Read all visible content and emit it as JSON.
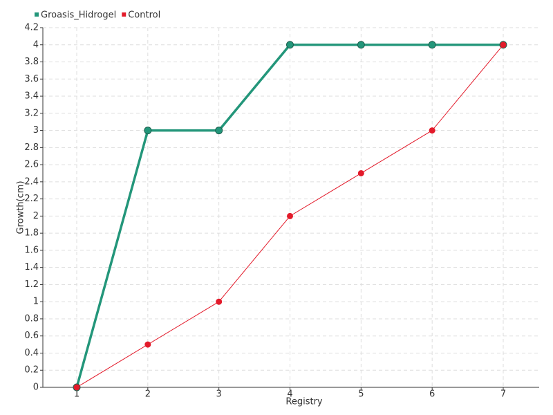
{
  "chart_data": {
    "type": "line",
    "x_label": "Registry",
    "y_label": "Growth(cm)",
    "categories": [
      "1",
      "2",
      "3",
      "4",
      "5",
      "6",
      "7"
    ],
    "series": [
      {
        "name": "Groasis_Hidrogel",
        "color": "#23967a",
        "values": [
          0,
          3,
          3,
          4,
          4,
          4,
          4
        ]
      },
      {
        "name": "Control",
        "color": "#e31a2a",
        "values": [
          0,
          0.5,
          1,
          2,
          2.5,
          3,
          4
        ]
      }
    ],
    "ylim": [
      0,
      4.2
    ],
    "yticks": [
      0,
      0.2,
      0.4,
      0.6,
      0.8,
      1,
      1.2,
      1.4,
      1.6,
      1.8,
      2,
      2.2,
      2.4,
      2.6,
      2.8,
      3,
      3.2,
      3.4,
      3.6,
      3.8,
      4,
      4.2
    ],
    "grid": true,
    "legend": "top-left"
  }
}
